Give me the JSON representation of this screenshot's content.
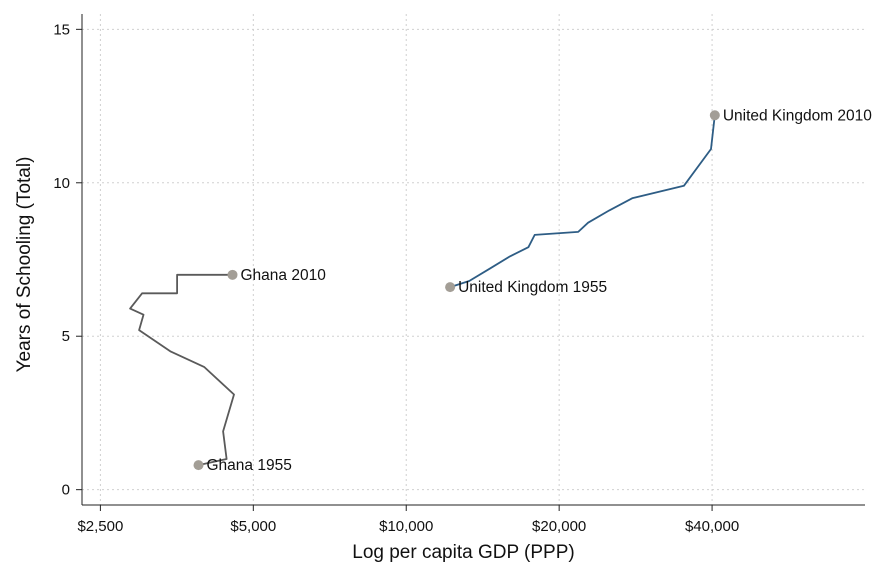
{
  "chart_data": {
    "type": "line",
    "title": "",
    "xlabel": "Log per capita GDP (PPP)",
    "ylabel": "Years of Schooling (Total)",
    "x_scale": "log",
    "xlim": [
      2300,
      80000
    ],
    "ylim": [
      -0.5,
      15.5
    ],
    "grid": true,
    "x_ticks": [
      {
        "value": 2500,
        "label": "$2,500"
      },
      {
        "value": 5000,
        "label": "$5,000"
      },
      {
        "value": 10000,
        "label": "$10,000"
      },
      {
        "value": 20000,
        "label": "$20,000"
      },
      {
        "value": 40000,
        "label": "$40,000"
      }
    ],
    "y_ticks": [
      {
        "value": 0,
        "label": "0"
      },
      {
        "value": 5,
        "label": "5"
      },
      {
        "value": 10,
        "label": "10"
      },
      {
        "value": 15,
        "label": "15"
      }
    ],
    "series": [
      {
        "color": "#5a5a5a",
        "x": [
          3900,
          4430,
          4360,
          4580,
          4000,
          3440,
          2980,
          3040,
          2860,
          3020,
          3540,
          3540,
          4550
        ],
        "y": [
          0.8,
          1.0,
          1.9,
          3.1,
          4.0,
          4.5,
          5.2,
          5.7,
          5.9,
          6.4,
          6.4,
          7.0,
          7.0
        ],
        "start_label": "Ghana 1955",
        "end_label": "Ghana 2010"
      },
      {
        "color": "#2e5d85",
        "x": [
          12200,
          13300,
          14600,
          16000,
          17400,
          17900,
          21800,
          22800,
          25100,
          27900,
          35200,
          39800,
          40500
        ],
        "y": [
          6.6,
          6.8,
          7.2,
          7.6,
          7.9,
          8.3,
          8.4,
          8.7,
          9.1,
          9.5,
          9.9,
          11.1,
          12.2
        ],
        "start_label": "United Kingdom 1955",
        "end_label": "United Kingdom 2010"
      }
    ],
    "marker_color": "#a39e96"
  }
}
